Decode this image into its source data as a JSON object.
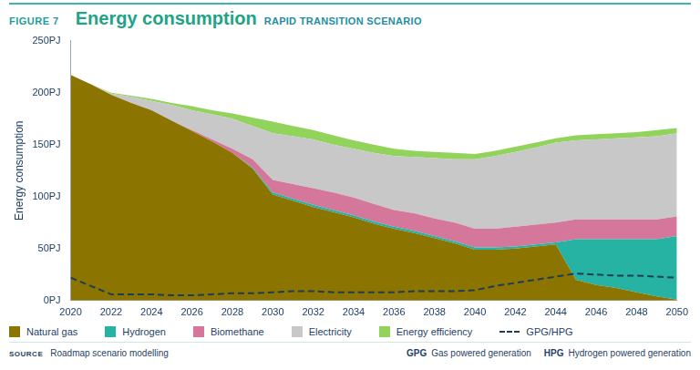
{
  "figure_label": "FIGURE 7",
  "chart_data": {
    "type": "area",
    "title": "Energy consumption",
    "subtitle": "RAPID TRANSITION SCENARIO",
    "y_label": "Energy consumption",
    "x": [
      2020,
      2021,
      2022,
      2023,
      2024,
      2025,
      2026,
      2027,
      2028,
      2029,
      2030,
      2031,
      2032,
      2033,
      2034,
      2035,
      2036,
      2037,
      2038,
      2039,
      2040,
      2041,
      2042,
      2043,
      2044,
      2045,
      2046,
      2047,
      2048,
      2049,
      2050
    ],
    "series": [
      {
        "name": "Natural gas",
        "color": "#8c7400",
        "values": [
          217,
          208,
          198,
          190,
          183,
          173,
          163,
          153,
          142,
          127,
          102,
          96,
          90,
          85,
          80,
          74,
          69,
          65,
          60,
          55,
          49,
          49,
          50,
          52,
          54,
          20,
          15,
          12,
          8,
          4,
          1
        ]
      },
      {
        "name": "Hydrogen",
        "color": "#27b3a4",
        "values": [
          0,
          0,
          0,
          0,
          0,
          0,
          0,
          0,
          0,
          1,
          2,
          2,
          2,
          2,
          2,
          2,
          2,
          2,
          2,
          2,
          2,
          2,
          2,
          2,
          2,
          39,
          44,
          47,
          51,
          55,
          61
        ]
      },
      {
        "name": "Biomethane",
        "color": "#d5779a",
        "values": [
          0,
          0,
          0,
          0,
          0,
          0,
          1,
          2,
          4,
          8,
          12,
          14,
          16,
          17,
          17,
          17,
          16,
          17,
          17,
          18,
          18,
          18,
          19,
          19,
          19,
          19,
          19,
          19,
          19,
          19,
          19
        ]
      },
      {
        "name": "Electricity",
        "color": "#c8c8c8",
        "values": [
          0,
          0,
          1,
          6,
          9,
          15,
          19,
          24,
          29,
          32,
          45,
          46,
          47,
          46,
          47,
          49,
          52,
          54,
          58,
          61,
          67,
          70,
          72,
          74,
          77,
          76,
          77,
          78,
          79,
          80,
          80
        ]
      },
      {
        "name": "Energy efficiency",
        "color": "#92d35c",
        "values": [
          0,
          0,
          1,
          1,
          2,
          2,
          4,
          4,
          5,
          8,
          11,
          10,
          9,
          9,
          8,
          8,
          7,
          6,
          6,
          6,
          5,
          5,
          5,
          5,
          4,
          5,
          5,
          5,
          5,
          6,
          5
        ]
      },
      {
        "name": "GPG/HPG",
        "color": "#1c3d5a",
        "type": "line",
        "line_style": "dashed",
        "values": [
          22,
          14,
          6,
          6,
          6,
          5,
          5,
          6,
          7,
          7,
          8,
          9,
          9,
          8,
          8,
          8,
          8,
          9,
          9,
          9,
          10,
          14,
          17,
          20,
          23,
          26,
          25,
          24,
          24,
          23,
          22
        ]
      }
    ],
    "xlim": [
      2020,
      2050
    ],
    "xticks": [
      2020,
      2022,
      2024,
      2026,
      2028,
      2030,
      2032,
      2034,
      2036,
      2038,
      2040,
      2042,
      2044,
      2046,
      2048,
      2050
    ],
    "ylim": [
      0,
      250
    ],
    "yticks": [
      {
        "value": 0,
        "label": "0PJ"
      },
      {
        "value": 50,
        "label": "50PJ"
      },
      {
        "value": 100,
        "label": "100PJ"
      },
      {
        "value": 150,
        "label": "150PJ"
      },
      {
        "value": 200,
        "label": "200PJ"
      },
      {
        "value": 250,
        "label": "250PJ"
      }
    ],
    "stacked": true,
    "grid": false,
    "legend": "bottom"
  },
  "source_label": "SOURCE",
  "source": "Roadmap scenario modelling",
  "notes": [
    {
      "abbr": "GPG",
      "text": "Gas powered generation"
    },
    {
      "abbr": "HPG",
      "text": "Hydrogen powered generation"
    }
  ]
}
